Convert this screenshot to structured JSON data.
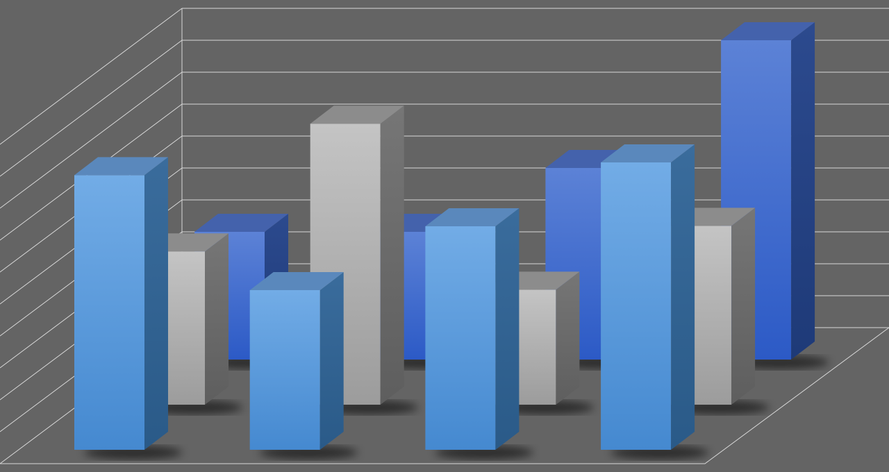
{
  "chart_data": {
    "type": "bar",
    "style": "3d-grouped-rows",
    "title": "",
    "xlabel": "",
    "ylabel": "",
    "categories": [
      "",
      "",
      "",
      ""
    ],
    "ylim": [
      0,
      10
    ],
    "grid": true,
    "legend": "none",
    "background_color": "#646464",
    "grid_color": "#d8d8d8",
    "series": [
      {
        "row": "back",
        "color": "#3a66cc",
        "values": [
          4.0,
          4.0,
          6.0,
          10.0
        ]
      },
      {
        "row": "middle",
        "color": "#b4b4b4",
        "values": [
          4.8,
          8.8,
          3.6,
          5.6
        ]
      },
      {
        "row": "front",
        "color": "#5a9ee0",
        "values": [
          8.6,
          5.0,
          7.0,
          9.0
        ]
      }
    ]
  }
}
